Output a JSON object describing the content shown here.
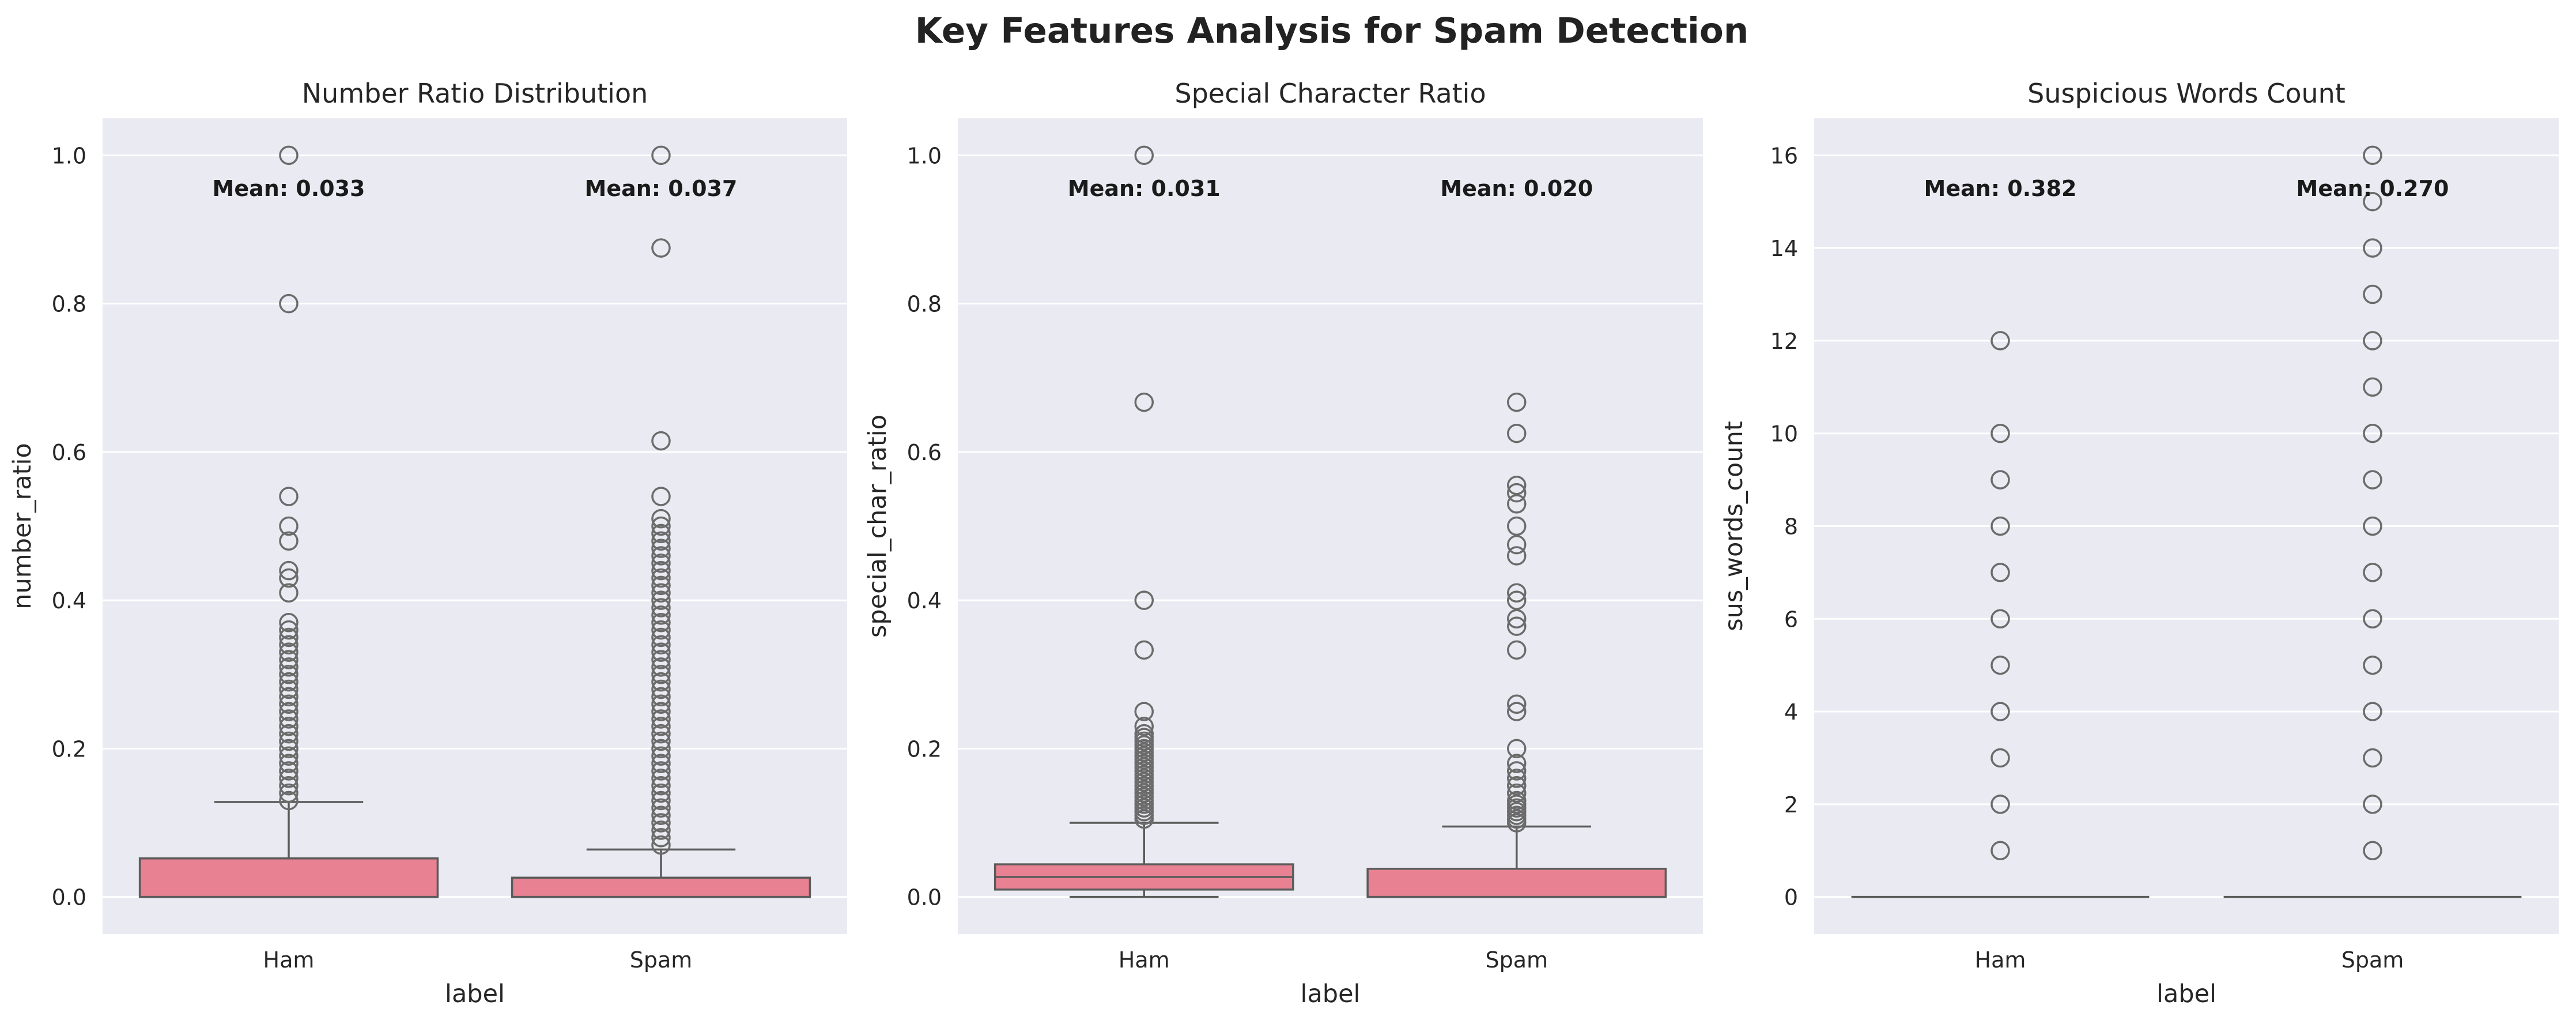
{
  "figure_title": "Key Features Analysis for Spam Detection",
  "chart_data": [
    {
      "type": "box",
      "title": "Number Ratio Distribution",
      "xlabel": "label",
      "ylabel": "number_ratio",
      "categories": [
        "Ham",
        "Spam"
      ],
      "ylim": [
        -0.05,
        1.05
      ],
      "yticks": [
        0.0,
        0.2,
        0.4,
        0.6,
        0.8,
        1.0
      ],
      "ytick_labels": [
        "0.0",
        "0.2",
        "0.4",
        "0.6",
        "0.8",
        "1.0"
      ],
      "grid": true,
      "box_color": "#e88293",
      "stats": [
        {
          "category": "Ham",
          "q1": 0.0,
          "median": 0.0,
          "q3": 0.052,
          "whisker_low": 0.0,
          "whisker_high": 0.128,
          "outliers": [
            0.13,
            0.14,
            0.15,
            0.16,
            0.17,
            0.18,
            0.19,
            0.2,
            0.21,
            0.22,
            0.23,
            0.24,
            0.25,
            0.26,
            0.27,
            0.28,
            0.29,
            0.3,
            0.31,
            0.32,
            0.33,
            0.34,
            0.35,
            0.36,
            0.37,
            0.41,
            0.43,
            0.44,
            0.48,
            0.5,
            0.54,
            0.8,
            1.0
          ],
          "mean_label": "Mean: 0.033"
        },
        {
          "category": "Spam",
          "q1": 0.0,
          "median": 0.0,
          "q3": 0.026,
          "whisker_low": 0.0,
          "whisker_high": 0.064,
          "outliers": [
            0.07,
            0.08,
            0.09,
            0.1,
            0.11,
            0.12,
            0.13,
            0.14,
            0.15,
            0.16,
            0.17,
            0.18,
            0.19,
            0.2,
            0.21,
            0.22,
            0.23,
            0.24,
            0.25,
            0.26,
            0.27,
            0.28,
            0.29,
            0.3,
            0.31,
            0.32,
            0.33,
            0.34,
            0.35,
            0.36,
            0.37,
            0.38,
            0.39,
            0.4,
            0.41,
            0.42,
            0.43,
            0.44,
            0.45,
            0.46,
            0.47,
            0.48,
            0.49,
            0.5,
            0.51,
            0.54,
            0.615,
            0.875,
            1.0
          ],
          "mean_label": "Mean: 0.037"
        }
      ]
    },
    {
      "type": "box",
      "title": "Special Character Ratio",
      "xlabel": "label",
      "ylabel": "special_char_ratio",
      "categories": [
        "Ham",
        "Spam"
      ],
      "ylim": [
        -0.05,
        1.05
      ],
      "yticks": [
        0.0,
        0.2,
        0.4,
        0.6,
        0.8,
        1.0
      ],
      "ytick_labels": [
        "0.0",
        "0.2",
        "0.4",
        "0.6",
        "0.8",
        "1.0"
      ],
      "grid": true,
      "box_color": "#e88293",
      "stats": [
        {
          "category": "Ham",
          "q1": 0.01,
          "median": 0.027,
          "q3": 0.044,
          "whisker_low": 0.0,
          "whisker_high": 0.1,
          "outliers": [
            0.105,
            0.11,
            0.115,
            0.12,
            0.125,
            0.13,
            0.135,
            0.14,
            0.145,
            0.15,
            0.155,
            0.16,
            0.165,
            0.17,
            0.175,
            0.18,
            0.185,
            0.19,
            0.195,
            0.2,
            0.205,
            0.21,
            0.215,
            0.22,
            0.23,
            0.25,
            0.333,
            0.4,
            0.667,
            1.0
          ],
          "mean_label": "Mean: 0.031"
        },
        {
          "category": "Spam",
          "q1": 0.0,
          "median": 0.0,
          "q3": 0.038,
          "whisker_low": 0.0,
          "whisker_high": 0.095,
          "outliers": [
            0.1,
            0.105,
            0.11,
            0.115,
            0.12,
            0.125,
            0.13,
            0.14,
            0.15,
            0.16,
            0.17,
            0.18,
            0.2,
            0.25,
            0.26,
            0.333,
            0.365,
            0.375,
            0.4,
            0.41,
            0.46,
            0.475,
            0.5,
            0.53,
            0.545,
            0.555,
            0.625,
            0.667
          ],
          "mean_label": "Mean: 0.020"
        }
      ]
    },
    {
      "type": "box",
      "title": "Suspicious Words Count",
      "xlabel": "label",
      "ylabel": "sus_words_count",
      "categories": [
        "Ham",
        "Spam"
      ],
      "ylim": [
        -0.8,
        16.8
      ],
      "yticks": [
        0,
        2,
        4,
        6,
        8,
        10,
        12,
        14,
        16
      ],
      "ytick_labels": [
        "0",
        "2",
        "4",
        "6",
        "8",
        "10",
        "12",
        "14",
        "16"
      ],
      "grid": true,
      "box_color": "#e88293",
      "stats": [
        {
          "category": "Ham",
          "q1": 0,
          "median": 0,
          "q3": 0,
          "whisker_low": 0,
          "whisker_high": 0,
          "outliers": [
            1,
            2,
            3,
            4,
            5,
            6,
            7,
            8,
            9,
            10,
            12
          ],
          "mean_label": "Mean: 0.382"
        },
        {
          "category": "Spam",
          "q1": 0,
          "median": 0,
          "q3": 0,
          "whisker_low": 0,
          "whisker_high": 0,
          "outliers": [
            1,
            2,
            3,
            4,
            5,
            6,
            7,
            8,
            9,
            10,
            11,
            12,
            13,
            14,
            15,
            16
          ],
          "mean_label": "Mean: 0.270"
        }
      ]
    }
  ]
}
